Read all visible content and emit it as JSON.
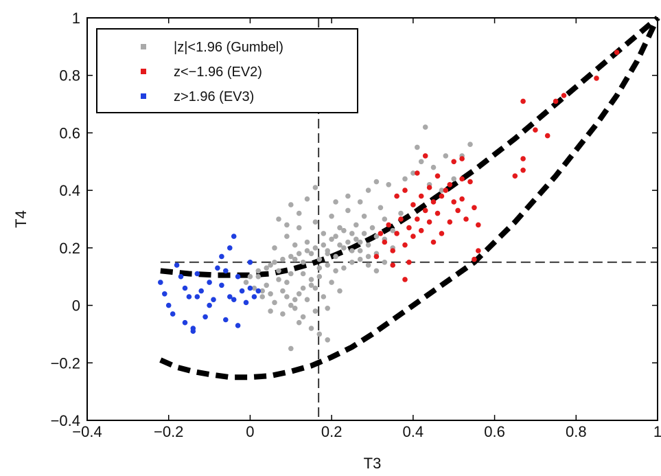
{
  "chart_data": {
    "type": "scatter",
    "title": "",
    "xlabel": "T3",
    "ylabel": "T4",
    "xlim": [
      -0.4,
      1.0
    ],
    "ylim": [
      -0.4,
      1.0
    ],
    "xticks": [
      -0.4,
      -0.2,
      0,
      0.2,
      0.4,
      0.6,
      0.8,
      1
    ],
    "yticks": [
      -0.4,
      -0.2,
      0,
      0.2,
      0.4,
      0.6,
      0.8,
      1
    ],
    "xtick_labels": [
      "−0.4",
      "−0.2",
      "0",
      "0.2",
      "0.4",
      "0.6",
      "0.8",
      "1"
    ],
    "ytick_labels": [
      "−0.4",
      "−0.2",
      "0",
      "0.2",
      "0.4",
      "0.6",
      "0.8",
      "1"
    ],
    "grid": false,
    "legend_position": "top-left",
    "series": [
      {
        "name": "|z|<1.96 (Gumbel)",
        "color": "#a9a9a9",
        "points": [
          [
            0.02,
            0.1
          ],
          [
            0.05,
            0.14
          ],
          [
            0.07,
            0.12
          ],
          [
            0.09,
            0.08
          ],
          [
            0.11,
            0.16
          ],
          [
            0.13,
            0.11
          ],
          [
            0.15,
            0.07
          ],
          [
            0.17,
            0.13
          ],
          [
            0.19,
            0.18
          ],
          [
            0.21,
            0.12
          ],
          [
            0.23,
            0.2
          ],
          [
            0.25,
            0.15
          ],
          [
            0.27,
            0.22
          ],
          [
            0.29,
            0.17
          ],
          [
            0.31,
            0.24
          ],
          [
            0.06,
            0.2
          ],
          [
            0.09,
            0.24
          ],
          [
            0.12,
            0.27
          ],
          [
            0.14,
            0.22
          ],
          [
            0.16,
            0.29
          ],
          [
            0.18,
            0.25
          ],
          [
            0.2,
            0.31
          ],
          [
            0.22,
            0.27
          ],
          [
            0.24,
            0.33
          ],
          [
            0.26,
            0.28
          ],
          [
            0.03,
            0.03
          ],
          [
            0.06,
            0.01
          ],
          [
            0.08,
            0.05
          ],
          [
            0.1,
            0.0
          ],
          [
            0.12,
            0.04
          ],
          [
            0.14,
            0.02
          ],
          [
            0.16,
            0.06
          ],
          [
            0.18,
            0.03
          ],
          [
            0.2,
            0.08
          ],
          [
            0.22,
            0.05
          ],
          [
            0.04,
            0.07
          ],
          [
            0.07,
            0.09
          ],
          [
            0.1,
            0.11
          ],
          [
            0.13,
            0.15
          ],
          [
            0.15,
            0.18
          ],
          [
            0.17,
            0.1
          ],
          [
            0.19,
            0.14
          ],
          [
            0.21,
            0.17
          ],
          [
            0.23,
            0.13
          ],
          [
            0.25,
            0.19
          ],
          [
            0.27,
            0.16
          ],
          [
            0.29,
            0.21
          ],
          [
            0.31,
            0.18
          ],
          [
            0.33,
            0.23
          ],
          [
            0.35,
            0.2
          ],
          [
            0.05,
            -0.02
          ],
          [
            0.08,
            -0.03
          ],
          [
            0.11,
            -0.01
          ],
          [
            0.13,
            -0.04
          ],
          [
            0.16,
            -0.02
          ],
          [
            0.19,
            -0.01
          ],
          [
            0.12,
            -0.06
          ],
          [
            0.15,
            -0.08
          ],
          [
            0.17,
            -0.1
          ],
          [
            0.1,
            -0.15
          ],
          [
            0.19,
            -0.12
          ],
          [
            0.07,
            0.3
          ],
          [
            0.1,
            0.35
          ],
          [
            0.12,
            0.32
          ],
          [
            0.14,
            0.37
          ],
          [
            0.16,
            0.41
          ],
          [
            0.21,
            0.36
          ],
          [
            0.24,
            0.38
          ],
          [
            0.27,
            0.36
          ],
          [
            0.29,
            0.4
          ],
          [
            0.31,
            0.43
          ],
          [
            0.34,
            0.42
          ],
          [
            0.36,
            0.38
          ],
          [
            0.38,
            0.44
          ],
          [
            0.4,
            0.46
          ],
          [
            0.42,
            0.5
          ],
          [
            0.43,
            0.62
          ],
          [
            0.41,
            0.55
          ],
          [
            0.45,
            0.48
          ],
          [
            0.48,
            0.52
          ],
          [
            0.52,
            0.52
          ],
          [
            0.54,
            0.56
          ],
          [
            0.44,
            0.42
          ],
          [
            0.47,
            0.4
          ],
          [
            0.5,
            0.44
          ],
          [
            0.37,
            0.32
          ],
          [
            0.33,
            0.3
          ],
          [
            0.3,
            0.27
          ],
          [
            0.28,
            0.25
          ],
          [
            0.26,
            0.23
          ],
          [
            0.24,
            0.22
          ],
          [
            0.22,
            0.21
          ],
          [
            0.2,
            0.23
          ],
          [
            0.18,
            0.21
          ],
          [
            0.16,
            0.2
          ],
          [
            0.14,
            0.19
          ],
          [
            0.12,
            0.18
          ],
          [
            0.1,
            0.17
          ],
          [
            0.08,
            0.16
          ],
          [
            0.06,
            0.15
          ],
          [
            0.04,
            0.13
          ],
          [
            0.02,
            0.12
          ],
          [
            0.0,
            0.1
          ],
          [
            -0.01,
            0.08
          ],
          [
            0.01,
            0.06
          ],
          [
            0.03,
            0.05
          ],
          [
            0.05,
            0.04
          ],
          [
            0.09,
            0.03
          ],
          [
            0.11,
            0.02
          ],
          [
            0.13,
            0.06
          ],
          [
            0.15,
            0.09
          ],
          [
            0.17,
            0.16
          ],
          [
            0.19,
            0.19
          ],
          [
            0.21,
            0.24
          ],
          [
            0.23,
            0.26
          ],
          [
            0.25,
            0.25
          ],
          [
            0.27,
            0.19
          ],
          [
            0.29,
            0.14
          ],
          [
            0.31,
            0.12
          ],
          [
            0.33,
            0.15
          ],
          [
            0.35,
            0.26
          ],
          [
            0.32,
            0.34
          ],
          [
            0.28,
            0.31
          ],
          [
            0.09,
            0.28
          ],
          [
            0.11,
            0.21
          ]
        ]
      },
      {
        "name": "z<−1.96 (EV2)",
        "color": "#e41a1c",
        "points": [
          [
            0.31,
            0.17
          ],
          [
            0.33,
            0.22
          ],
          [
            0.35,
            0.19
          ],
          [
            0.36,
            0.25
          ],
          [
            0.38,
            0.21
          ],
          [
            0.39,
            0.27
          ],
          [
            0.4,
            0.24
          ],
          [
            0.41,
            0.3
          ],
          [
            0.42,
            0.26
          ],
          [
            0.43,
            0.33
          ],
          [
            0.44,
            0.29
          ],
          [
            0.45,
            0.36
          ],
          [
            0.46,
            0.32
          ],
          [
            0.37,
            0.3
          ],
          [
            0.34,
            0.28
          ],
          [
            0.32,
            0.25
          ],
          [
            0.4,
            0.35
          ],
          [
            0.42,
            0.38
          ],
          [
            0.44,
            0.41
          ],
          [
            0.47,
            0.38
          ],
          [
            0.49,
            0.42
          ],
          [
            0.5,
            0.36
          ],
          [
            0.51,
            0.33
          ],
          [
            0.52,
            0.37
          ],
          [
            0.53,
            0.3
          ],
          [
            0.55,
            0.34
          ],
          [
            0.56,
            0.28
          ],
          [
            0.54,
            0.43
          ],
          [
            0.52,
            0.44
          ],
          [
            0.5,
            0.5
          ],
          [
            0.52,
            0.51
          ],
          [
            0.43,
            0.52
          ],
          [
            0.46,
            0.45
          ],
          [
            0.48,
            0.4
          ],
          [
            0.36,
            0.38
          ],
          [
            0.38,
            0.4
          ],
          [
            0.41,
            0.46
          ],
          [
            0.39,
            0.15
          ],
          [
            0.35,
            0.14
          ],
          [
            0.38,
            0.09
          ],
          [
            0.56,
            0.19
          ],
          [
            0.55,
            0.16
          ],
          [
            0.65,
            0.45
          ],
          [
            0.67,
            0.47
          ],
          [
            0.67,
            0.51
          ],
          [
            0.67,
            0.71
          ],
          [
            0.7,
            0.61
          ],
          [
            0.73,
            0.59
          ],
          [
            0.75,
            0.71
          ],
          [
            0.77,
            0.73
          ],
          [
            0.85,
            0.79
          ],
          [
            0.9,
            0.88
          ],
          [
            0.45,
            0.22
          ],
          [
            0.47,
            0.25
          ],
          [
            0.49,
            0.29
          ]
        ]
      },
      {
        "name": "z>1.96 (EV3)",
        "color": "#1f3fe0",
        "points": [
          [
            -0.22,
            0.08
          ],
          [
            -0.21,
            0.04
          ],
          [
            -0.19,
            -0.03
          ],
          [
            -0.18,
            0.14
          ],
          [
            -0.17,
            0.1
          ],
          [
            -0.16,
            -0.06
          ],
          [
            -0.15,
            0.03
          ],
          [
            -0.14,
            -0.08
          ],
          [
            -0.13,
            0.11
          ],
          [
            -0.12,
            0.05
          ],
          [
            -0.11,
            -0.04
          ],
          [
            -0.1,
            0.08
          ],
          [
            -0.09,
            0.02
          ],
          [
            -0.08,
            0.13
          ],
          [
            -0.07,
            0.17
          ],
          [
            -0.07,
            0.07
          ],
          [
            -0.06,
            -0.05
          ],
          [
            -0.05,
            0.03
          ],
          [
            -0.05,
            0.2
          ],
          [
            -0.04,
            0.24
          ],
          [
            -0.03,
            0.1
          ],
          [
            -0.03,
            -0.07
          ],
          [
            -0.02,
            0.05
          ],
          [
            -0.01,
            0.01
          ],
          [
            0.0,
            0.06
          ],
          [
            0.01,
            0.03
          ],
          [
            0.02,
            0.05
          ],
          [
            0.0,
            0.15
          ],
          [
            -0.04,
            0.02
          ],
          [
            -0.06,
            0.12
          ],
          [
            -0.1,
            0.0
          ],
          [
            -0.13,
            0.03
          ],
          [
            -0.16,
            0.06
          ],
          [
            -0.2,
            0.0
          ],
          [
            -0.14,
            -0.09
          ]
        ]
      }
    ],
    "curves": [
      {
        "name": "upper-boundary",
        "style": "thick-dashed",
        "color": "#000000",
        "points": [
          [
            -0.22,
            0.12
          ],
          [
            -0.15,
            0.11
          ],
          [
            -0.08,
            0.105
          ],
          [
            0.0,
            0.105
          ],
          [
            0.05,
            0.11
          ],
          [
            0.1,
            0.125
          ],
          [
            0.15,
            0.145
          ],
          [
            0.2,
            0.17
          ],
          [
            0.25,
            0.2
          ],
          [
            0.3,
            0.235
          ],
          [
            0.35,
            0.275
          ],
          [
            0.4,
            0.32
          ],
          [
            0.45,
            0.37
          ],
          [
            0.5,
            0.42
          ],
          [
            0.55,
            0.47
          ],
          [
            0.6,
            0.525
          ],
          [
            0.65,
            0.58
          ],
          [
            0.7,
            0.64
          ],
          [
            0.75,
            0.7
          ],
          [
            0.8,
            0.76
          ],
          [
            0.85,
            0.82
          ],
          [
            0.9,
            0.88
          ],
          [
            0.95,
            0.94
          ],
          [
            1.0,
            1.0
          ]
        ]
      },
      {
        "name": "lower-boundary",
        "style": "thick-dashed",
        "color": "#000000",
        "points": [
          [
            -0.22,
            -0.19
          ],
          [
            -0.18,
            -0.215
          ],
          [
            -0.14,
            -0.23
          ],
          [
            -0.1,
            -0.24
          ],
          [
            -0.05,
            -0.25
          ],
          [
            0.0,
            -0.25
          ],
          [
            0.05,
            -0.245
          ],
          [
            0.1,
            -0.23
          ],
          [
            0.15,
            -0.21
          ],
          [
            0.2,
            -0.18
          ],
          [
            0.25,
            -0.145
          ],
          [
            0.3,
            -0.1
          ],
          [
            0.35,
            -0.05
          ],
          [
            0.4,
            0.0
          ],
          [
            0.45,
            0.05
          ],
          [
            0.5,
            0.1
          ],
          [
            0.55,
            0.15
          ],
          [
            0.6,
            0.22
          ],
          [
            0.65,
            0.29
          ],
          [
            0.7,
            0.37
          ],
          [
            0.75,
            0.45
          ],
          [
            0.8,
            0.54
          ],
          [
            0.85,
            0.63
          ],
          [
            0.9,
            0.73
          ],
          [
            0.95,
            0.85
          ],
          [
            1.0,
            1.0
          ]
        ]
      }
    ],
    "reference_lines": [
      {
        "orientation": "vertical",
        "value": 0.168,
        "style": "thin-dashed",
        "color": "#333333"
      },
      {
        "orientation": "horizontal",
        "value": 0.15,
        "style": "thin-dashed",
        "color": "#333333",
        "from": -0.22
      }
    ]
  }
}
